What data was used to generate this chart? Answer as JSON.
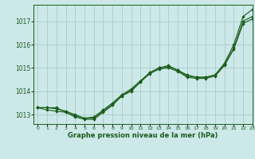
{
  "bg_color": "#cce8e8",
  "grid_color": "#aacccc",
  "line_color": "#1a5c1a",
  "marker_color": "#1a5c1a",
  "xlabel": "Graphe pression niveau de la mer (hPa)",
  "xlabel_color": "#1a5c1a",
  "ylabel_ticks": [
    1013,
    1014,
    1015,
    1016,
    1017
  ],
  "xlim": [
    -0.5,
    23
  ],
  "ylim": [
    1012.6,
    1017.7
  ],
  "series": [
    [
      1013.3,
      1013.3,
      1013.3,
      1013.1,
      1012.9,
      1012.8,
      1012.8,
      1013.1,
      1013.4,
      1013.8,
      1014.0,
      1014.4,
      1014.8,
      1015.0,
      1015.1,
      1014.9,
      1014.7,
      1014.6,
      1014.6,
      1014.7,
      1015.2,
      1016.0,
      1017.2,
      1017.5
    ],
    [
      1013.3,
      1013.2,
      1013.15,
      1013.1,
      1012.95,
      1012.85,
      1012.85,
      1013.15,
      1013.45,
      1013.8,
      1014.05,
      1014.4,
      1014.75,
      1014.95,
      1015.0,
      1014.85,
      1014.6,
      1014.55,
      1014.55,
      1014.65,
      1015.1,
      1015.8,
      1016.9,
      1017.1
    ],
    [
      1013.3,
      1013.3,
      1013.25,
      1013.15,
      1013.0,
      1012.85,
      1012.9,
      1013.2,
      1013.5,
      1013.85,
      1014.1,
      1014.45,
      1014.8,
      1015.0,
      1015.05,
      1014.9,
      1014.65,
      1014.6,
      1014.6,
      1014.7,
      1015.15,
      1015.85,
      1017.0,
      1017.2
    ]
  ]
}
